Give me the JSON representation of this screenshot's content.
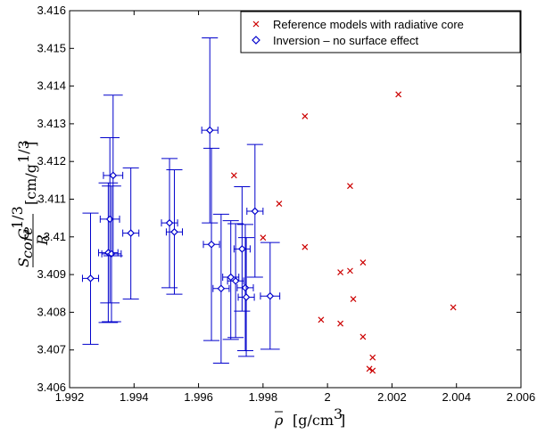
{
  "chart_data": {
    "type": "scatter",
    "xlabel": "ρ̄ [g/cm³]",
    "ylabel": "S_core G^(1/3) / R [cm/g^(1/3)]",
    "xlim": [
      1.992,
      2.006
    ],
    "ylim": [
      3.406,
      3.416
    ],
    "xticks": [
      "1.992",
      "1.994",
      "1.996",
      "1.998",
      "2",
      "2.002",
      "2.004",
      "2.006"
    ],
    "yticks": [
      "3.406",
      "3.407",
      "3.408",
      "3.409",
      "3.41",
      "3.411",
      "3.412",
      "3.413",
      "3.414",
      "3.415",
      "3.416"
    ],
    "grid": false,
    "legend_position": "top-right",
    "series": [
      {
        "name": "Reference models with radiative core",
        "marker": "x",
        "color": "#cc0000",
        "points": [
          [
            1.9971,
            3.41163
          ],
          [
            1.998,
            3.40998
          ],
          [
            1.9985,
            3.41088
          ],
          [
            1.9993,
            3.4132
          ],
          [
            1.9993,
            3.40973
          ],
          [
            1.9998,
            3.4078
          ],
          [
            2.0004,
            3.40906
          ],
          [
            2.0004,
            3.4077
          ],
          [
            2.0007,
            3.41135
          ],
          [
            2.0007,
            3.4091
          ],
          [
            2.0008,
            3.40835
          ],
          [
            2.0011,
            3.40932
          ],
          [
            2.0011,
            3.40735
          ],
          [
            2.0013,
            3.4065
          ],
          [
            2.0014,
            3.4068
          ],
          [
            2.0014,
            3.40645
          ],
          [
            2.0022,
            3.41378
          ],
          [
            2.0039,
            3.40813
          ]
        ]
      },
      {
        "name": "Inversion – no surface effect",
        "marker": "diamond",
        "color": "#0000cc",
        "points": [
          {
            "x": 1.99265,
            "y": 3.4089,
            "xerr": 0.00025,
            "ylo": 3.40715,
            "yhi": 3.41063
          },
          {
            "x": 1.9932,
            "y": 3.40958,
            "xerr": 0.0003,
            "ylo": 3.40773,
            "yhi": 3.41143
          },
          {
            "x": 1.99325,
            "y": 3.41047,
            "xerr": 0.0003,
            "ylo": 3.40825,
            "yhi": 3.41263
          },
          {
            "x": 1.9933,
            "y": 3.40955,
            "xerr": 0.0003,
            "ylo": 3.40775,
            "yhi": 3.41135
          },
          {
            "x": 1.99335,
            "y": 3.41163,
            "xerr": 0.0003,
            "ylo": 3.4095,
            "yhi": 3.41376
          },
          {
            "x": 1.9939,
            "y": 3.4101,
            "xerr": 0.00025,
            "ylo": 3.40835,
            "yhi": 3.41183
          },
          {
            "x": 1.9951,
            "y": 3.41037,
            "xerr": 0.00025,
            "ylo": 3.40865,
            "yhi": 3.41208
          },
          {
            "x": 1.99525,
            "y": 3.41013,
            "xerr": 0.00025,
            "ylo": 3.40848,
            "yhi": 3.41178
          },
          {
            "x": 1.99635,
            "y": 3.41283,
            "xerr": 0.00025,
            "ylo": 3.41037,
            "yhi": 3.41528
          },
          {
            "x": 1.9964,
            "y": 3.4098,
            "xerr": 0.00025,
            "ylo": 3.40725,
            "yhi": 3.41235
          },
          {
            "x": 1.9967,
            "y": 3.40863,
            "xerr": 0.00025,
            "ylo": 3.40665,
            "yhi": 3.4106
          },
          {
            "x": 1.997,
            "y": 3.40893,
            "xerr": 0.00025,
            "ylo": 3.40728,
            "yhi": 3.41043
          },
          {
            "x": 1.99715,
            "y": 3.40883,
            "xerr": 0.00025,
            "ylo": 3.40733,
            "yhi": 3.41035
          },
          {
            "x": 1.99735,
            "y": 3.40968,
            "xerr": 0.00025,
            "ylo": 3.40803,
            "yhi": 3.41133
          },
          {
            "x": 1.99745,
            "y": 3.40865,
            "xerr": 0.00025,
            "ylo": 3.40698,
            "yhi": 3.41033
          },
          {
            "x": 1.99748,
            "y": 3.4084,
            "xerr": 0.00025,
            "ylo": 3.40683,
            "yhi": 3.40998
          },
          {
            "x": 1.99775,
            "y": 3.41068,
            "xerr": 0.00025,
            "ylo": 3.40893,
            "yhi": 3.41245
          },
          {
            "x": 1.99822,
            "y": 3.40843,
            "xerr": 0.0003,
            "ylo": 3.40702,
            "yhi": 3.40985
          }
        ]
      }
    ]
  }
}
